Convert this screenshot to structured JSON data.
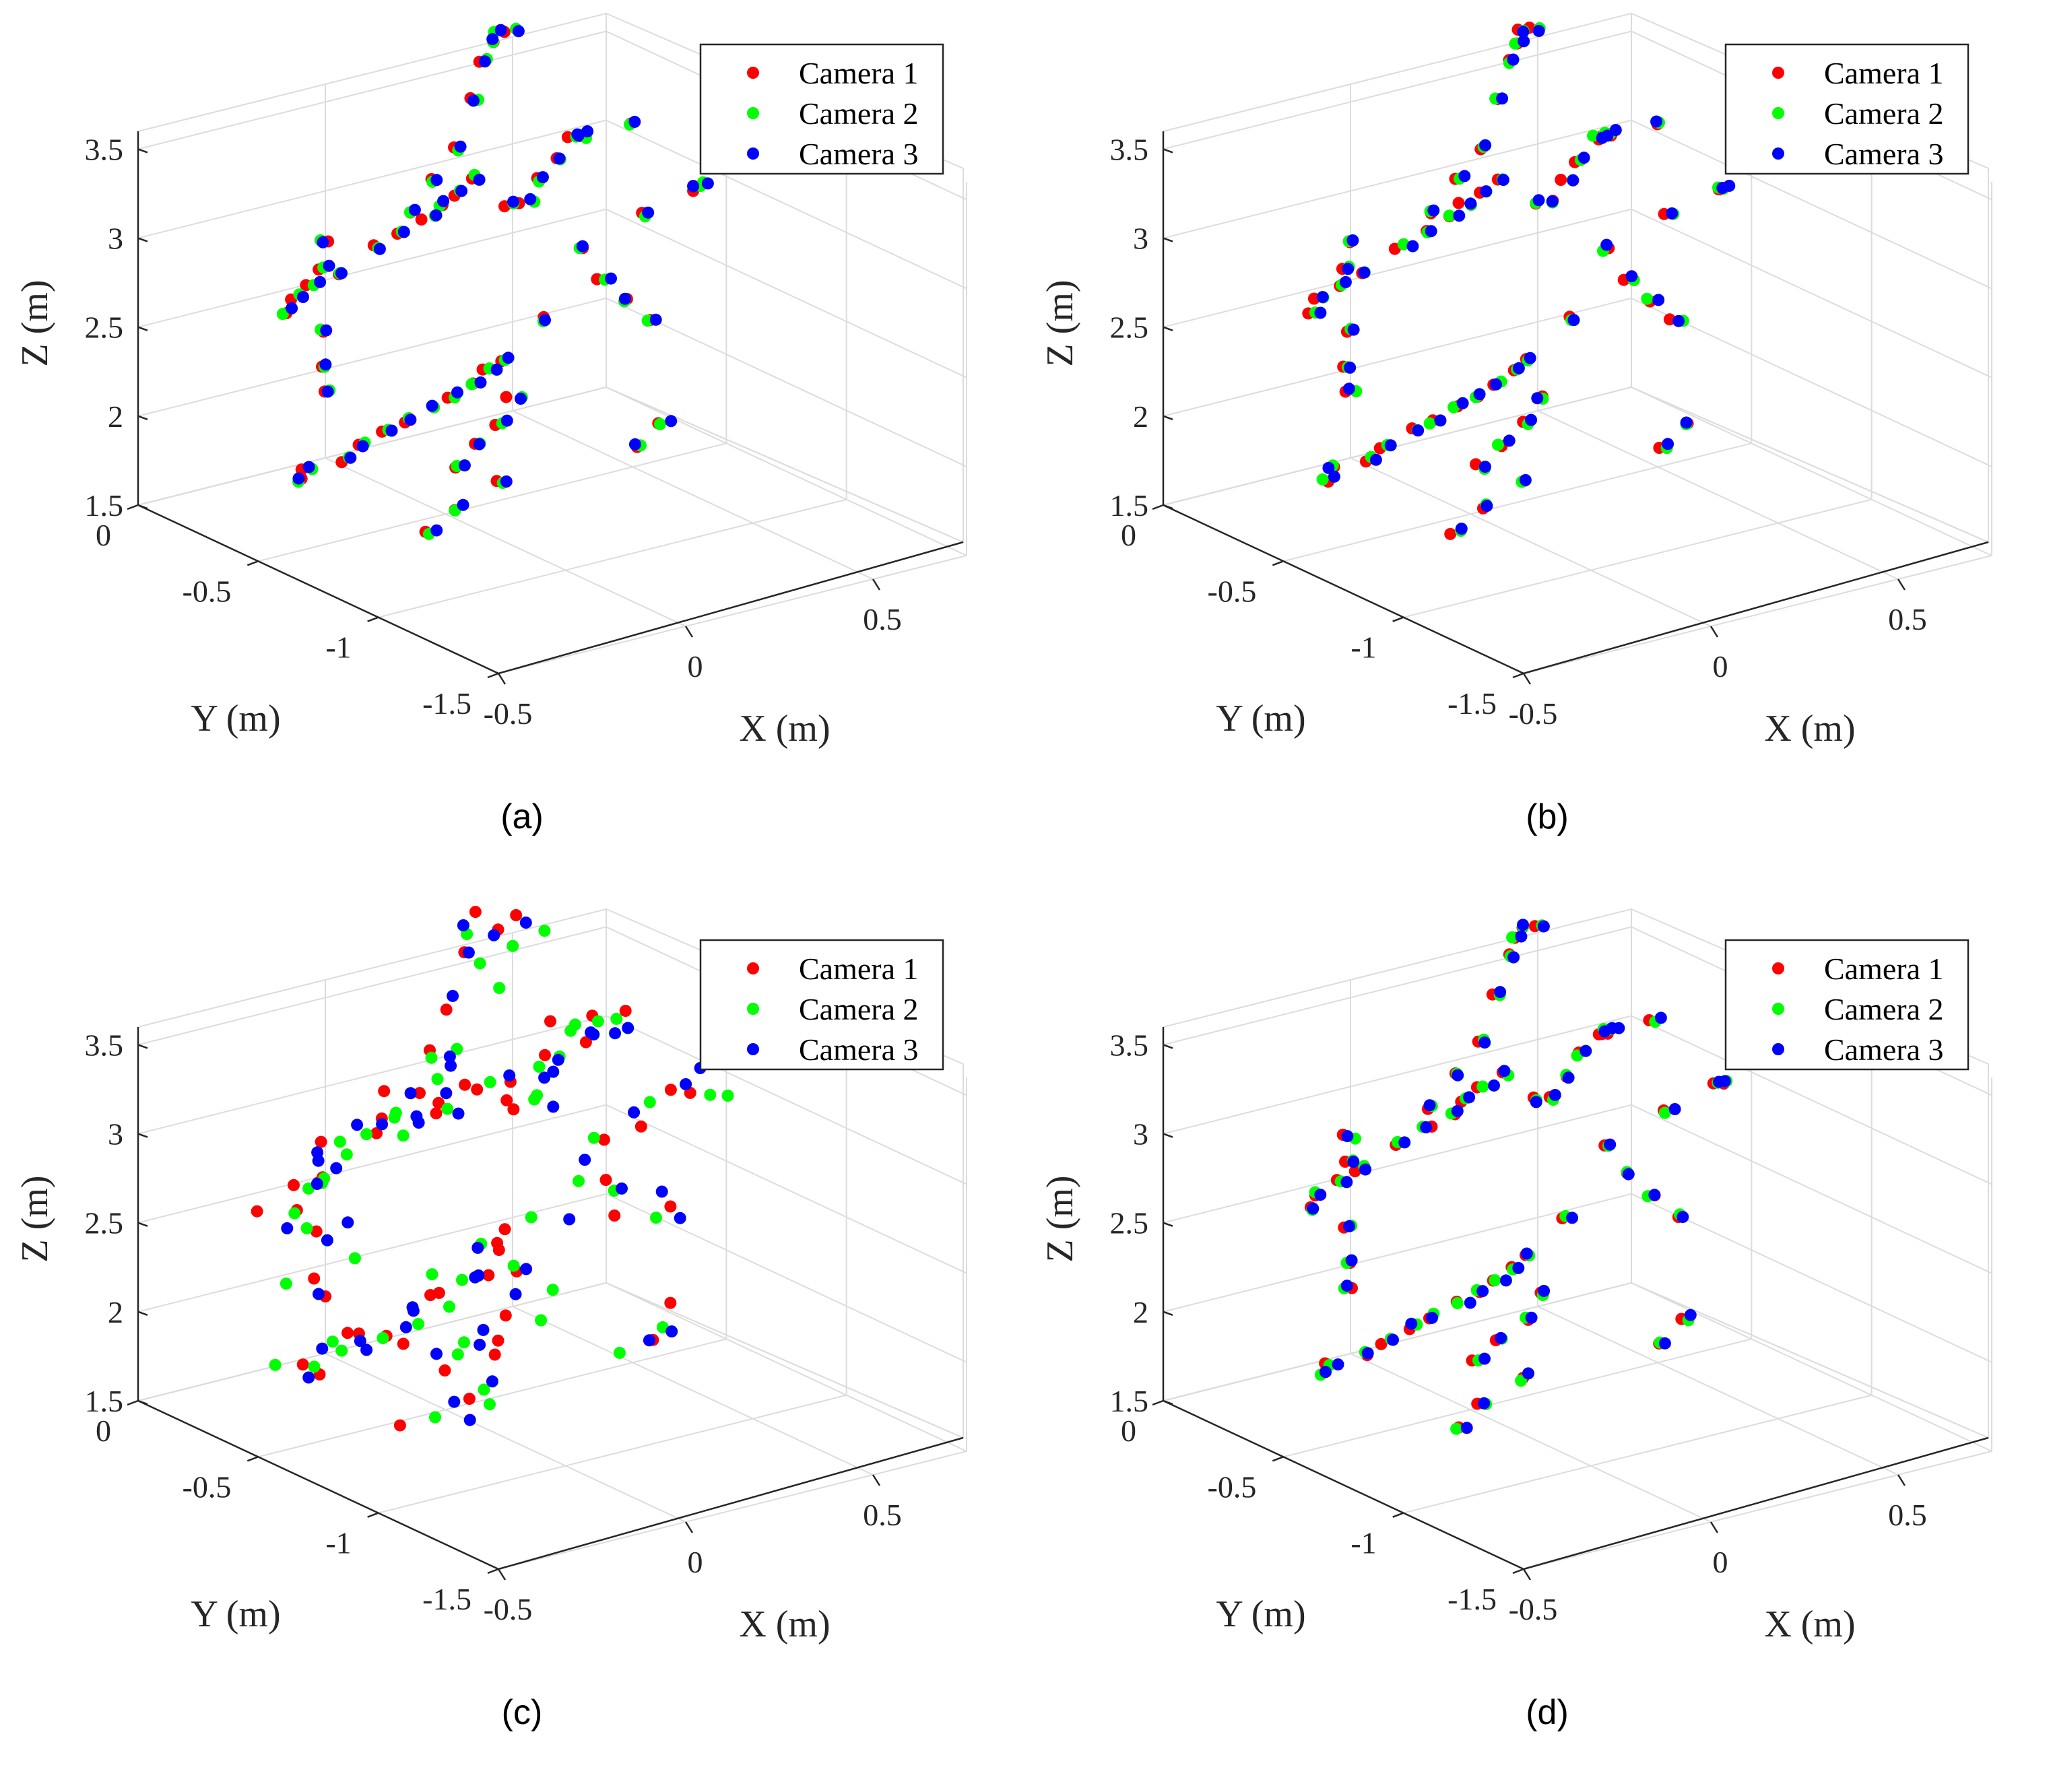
{
  "figure": {
    "captions": [
      "(a)",
      "(b)",
      "(c)",
      "(d)"
    ]
  },
  "colors": {
    "camera_1": "#ff0000",
    "camera_2": "#00ff00",
    "camera_3": "#0000ff"
  },
  "chart_data": [
    {
      "type": "scatter3d",
      "caption": "(a)",
      "xlabel": "X (m)",
      "ylabel": "Y (m)",
      "zlabel": "Z (m)",
      "xlim": [
        -0.5,
        0.75
      ],
      "ylim": [
        -1.5,
        0
      ],
      "zlim": [
        1.5,
        3.6
      ],
      "xticks": [
        "-0.5",
        "0",
        "0.5"
      ],
      "yticks": [
        "0",
        "-0.5",
        "-1",
        "-1.5"
      ],
      "zticks": [
        "1.5",
        "2",
        "2.5",
        "3",
        "3.5"
      ],
      "grid": true,
      "legend": {
        "position": "top-right",
        "entries": [
          "Camera 1",
          "Camera 2",
          "Camera 3"
        ]
      },
      "noise": 0.012,
      "series": [
        {
          "name": "Camera 1",
          "color": "#ff0000"
        },
        {
          "name": "Camera 2",
          "color": "#00ff00"
        },
        {
          "name": "Camera 3",
          "color": "#0000ff"
        }
      ]
    },
    {
      "type": "scatter3d",
      "caption": "(b)",
      "xlabel": "X (m)",
      "ylabel": "Y (m)",
      "zlabel": "Z (m)",
      "xlim": [
        -0.5,
        0.75
      ],
      "ylim": [
        -1.5,
        0
      ],
      "zlim": [
        1.5,
        3.6
      ],
      "xticks": [
        "-0.5",
        "0",
        "0.5"
      ],
      "yticks": [
        "0",
        "-0.5",
        "-1",
        "-1.5"
      ],
      "zticks": [
        "1.5",
        "2",
        "2.5",
        "3",
        "3.5"
      ],
      "grid": true,
      "legend": {
        "position": "top-right",
        "entries": [
          "Camera 1",
          "Camera 2",
          "Camera 3"
        ]
      },
      "noise": 0.012,
      "series": [
        {
          "name": "Camera 1",
          "color": "#ff0000"
        },
        {
          "name": "Camera 2",
          "color": "#00ff00"
        },
        {
          "name": "Camera 3",
          "color": "#0000ff"
        }
      ]
    },
    {
      "type": "scatter3d",
      "caption": "(c)",
      "xlabel": "X (m)",
      "ylabel": "Y (m)",
      "zlabel": "Z (m)",
      "xlim": [
        -0.5,
        0.75
      ],
      "ylim": [
        -1.5,
        0
      ],
      "zlim": [
        1.5,
        3.6
      ],
      "xticks": [
        "-0.5",
        "0",
        "0.5"
      ],
      "yticks": [
        "0",
        "-0.5",
        "-1",
        "-1.5"
      ],
      "zticks": [
        "1.5",
        "2",
        "2.5",
        "3",
        "3.5"
      ],
      "grid": true,
      "legend": {
        "position": "top-right",
        "entries": [
          "Camera 1",
          "Camera 2",
          "Camera 3"
        ]
      },
      "noise": 0.07,
      "series": [
        {
          "name": "Camera 1",
          "color": "#ff0000"
        },
        {
          "name": "Camera 2",
          "color": "#00ff00"
        },
        {
          "name": "Camera 3",
          "color": "#0000ff"
        }
      ]
    },
    {
      "type": "scatter3d",
      "caption": "(d)",
      "xlabel": "X (m)",
      "ylabel": "Y (m)",
      "zlabel": "Z (m)",
      "xlim": [
        -0.5,
        0.75
      ],
      "ylim": [
        -1.5,
        0
      ],
      "zlim": [
        1.5,
        3.6
      ],
      "xticks": [
        "-0.5",
        "0",
        "0.5"
      ],
      "yticks": [
        "0",
        "-0.5",
        "-1",
        "-1.5"
      ],
      "zticks": [
        "1.5",
        "2",
        "2.5",
        "3",
        "3.5"
      ],
      "grid": true,
      "legend": {
        "position": "top-right",
        "entries": [
          "Camera 1",
          "Camera 2",
          "Camera 3"
        ]
      },
      "noise": 0.012,
      "series": [
        {
          "name": "Camera 1",
          "color": "#ff0000"
        },
        {
          "name": "Camera 2",
          "color": "#00ff00"
        },
        {
          "name": "Camera 3",
          "color": "#0000ff"
        }
      ]
    }
  ],
  "structure_points": {
    "note": "approximate 3D landmark positions (x, y, z in metres) shared by all cameras",
    "points": [
      [
        -0.45,
        -0.6,
        2.0
      ],
      [
        -0.4,
        -0.55,
        2.0
      ],
      [
        -0.3,
        -0.55,
        2.0
      ],
      [
        -0.22,
        -0.5,
        2.0
      ],
      [
        -0.12,
        -0.45,
        2.0
      ],
      [
        -0.05,
        -0.42,
        2.0
      ],
      [
        0.05,
        -0.38,
        2.0
      ],
      [
        0.12,
        -0.35,
        2.0
      ],
      [
        0.2,
        -0.3,
        2.0
      ],
      [
        0.28,
        -0.25,
        2.0
      ],
      [
        0.35,
        -0.2,
        2.0
      ],
      [
        -0.1,
        -0.7,
        1.95
      ],
      [
        -0.05,
        -0.8,
        1.9
      ],
      [
        0.02,
        -0.6,
        1.95
      ],
      [
        0.12,
        -0.55,
        1.98
      ],
      [
        0.22,
        -0.45,
        2.0
      ],
      [
        0.35,
        -0.75,
        1.85
      ],
      [
        0.45,
        -0.7,
        1.9
      ],
      [
        -0.45,
        -1.15,
        2.05
      ],
      [
        -0.35,
        -1.1,
        2.1
      ],
      [
        -0.55,
        -0.7,
        3.05
      ],
      [
        -0.48,
        -0.62,
        3.05
      ],
      [
        -0.4,
        -0.58,
        3.05
      ],
      [
        -0.32,
        -0.55,
        3.05
      ],
      [
        -0.42,
        -0.65,
        3.2
      ],
      [
        -0.42,
        -0.65,
        2.85
      ],
      [
        -0.42,
        -0.65,
        2.65
      ],
      [
        -0.42,
        -0.65,
        2.5
      ],
      [
        -0.42,
        -0.65,
        3.35
      ],
      [
        -0.15,
        -0.45,
        3.05
      ],
      [
        -0.05,
        -0.4,
        3.05
      ],
      [
        0.05,
        -0.35,
        3.05
      ],
      [
        0.12,
        -0.3,
        3.05
      ],
      [
        0.2,
        -0.25,
        3.05
      ],
      [
        0.28,
        -0.2,
        3.05
      ],
      [
        -0.1,
        -0.5,
        3.25
      ],
      [
        0.0,
        -0.45,
        3.35
      ],
      [
        0.1,
        -0.4,
        3.45
      ],
      [
        0.2,
        -0.3,
        3.6
      ],
      [
        0.3,
        -0.2,
        3.7
      ],
      [
        0.35,
        -0.15,
        3.75
      ],
      [
        0.4,
        -0.1,
        3.75
      ],
      [
        0.45,
        -0.08,
        3.72
      ],
      [
        0.3,
        -0.3,
        2.95
      ],
      [
        0.38,
        -0.25,
        2.9
      ],
      [
        0.45,
        -0.2,
        2.95
      ],
      [
        0.52,
        -0.15,
        3.0
      ],
      [
        0.6,
        -0.1,
        3.05
      ],
      [
        0.65,
        -0.05,
        3.0
      ],
      [
        0.7,
        0.0,
        2.95
      ],
      [
        0.4,
        -0.45,
        2.75
      ],
      [
        0.45,
        -0.45,
        2.55
      ],
      [
        0.55,
        -0.4,
        2.35
      ],
      [
        0.65,
        -0.35,
        2.15
      ],
      [
        0.5,
        -0.55,
        2.95
      ],
      [
        0.3,
        -0.45,
        2.4
      ],
      [
        0.85,
        0.05,
        2.9
      ],
      [
        1.05,
        0.1,
        2.4
      ],
      [
        1.1,
        0.15,
        2.35
      ]
    ]
  }
}
